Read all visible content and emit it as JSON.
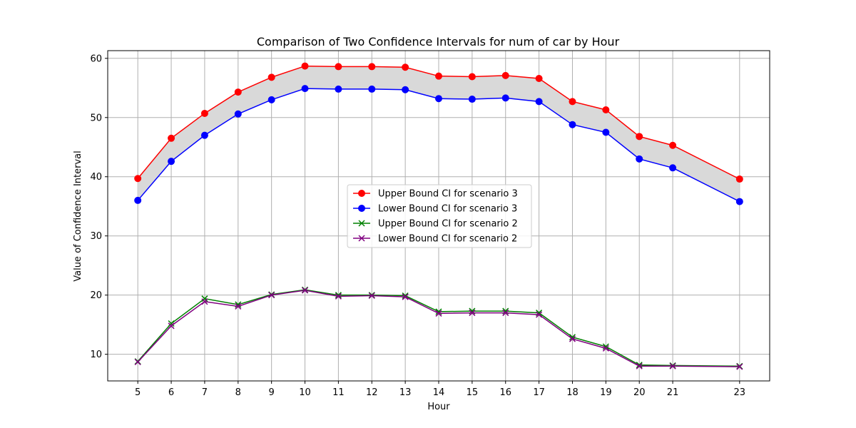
{
  "chart_data": {
    "type": "line",
    "title": "Comparison of Two Confidence Intervals for num of car by Hour",
    "xlabel": "Hour",
    "ylabel": "Value of Confidence Interval",
    "x": [
      5,
      6,
      7,
      8,
      9,
      10,
      11,
      12,
      13,
      14,
      15,
      16,
      17,
      18,
      19,
      20,
      21,
      23
    ],
    "xlim": [
      4.1,
      23.9
    ],
    "ylim": [
      5.5,
      61.3
    ],
    "yticks": [
      10,
      20,
      30,
      40,
      50,
      60
    ],
    "grid": true,
    "legend_position": "center",
    "fill_between": {
      "upper_series": 0,
      "lower_series": 1,
      "color": "#d9d9d9"
    },
    "series": [
      {
        "name": "Upper Bound CI for scenario 3",
        "color": "#ff0000",
        "marker": "circle",
        "values": [
          39.7,
          46.5,
          50.7,
          54.3,
          56.8,
          58.7,
          58.6,
          58.6,
          58.5,
          57.0,
          56.9,
          57.1,
          56.6,
          52.7,
          51.3,
          46.8,
          45.3,
          39.6
        ]
      },
      {
        "name": "Lower Bound CI for scenario 3",
        "color": "#0000ff",
        "marker": "circle",
        "values": [
          36.0,
          42.6,
          47.0,
          50.6,
          53.0,
          54.9,
          54.8,
          54.8,
          54.7,
          53.2,
          53.1,
          53.3,
          52.7,
          48.8,
          47.5,
          43.0,
          41.5,
          35.8
        ]
      },
      {
        "name": "Upper Bound CI for scenario 2",
        "color": "#008000",
        "marker": "x",
        "values": [
          8.8,
          15.2,
          19.4,
          18.4,
          20.1,
          20.9,
          20.0,
          20.0,
          19.9,
          17.2,
          17.3,
          17.3,
          17.0,
          12.9,
          11.3,
          8.2,
          8.1,
          8.0
        ]
      },
      {
        "name": "Lower Bound CI for scenario 2",
        "color": "#800080",
        "marker": "x",
        "values": [
          8.7,
          14.8,
          18.9,
          18.1,
          20.0,
          20.8,
          19.8,
          19.9,
          19.7,
          16.9,
          17.0,
          17.0,
          16.7,
          12.6,
          11.0,
          8.0,
          8.0,
          7.9
        ]
      }
    ]
  }
}
